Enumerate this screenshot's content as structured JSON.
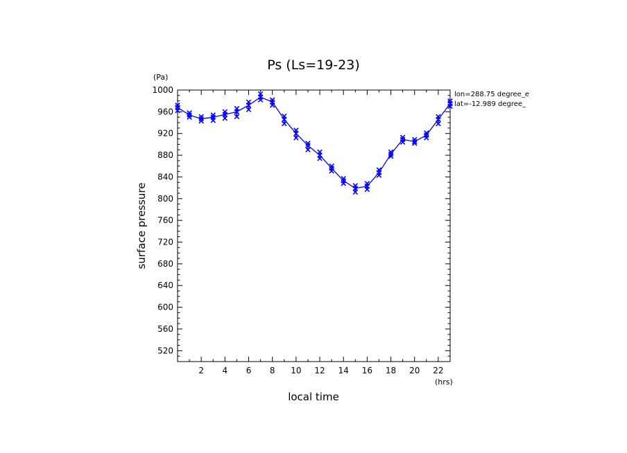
{
  "chart_data": {
    "type": "line",
    "title": "Ps (Ls=19-23)",
    "xlabel": "local time",
    "ylabel": "surface pressure",
    "x_unit": "(hrs)",
    "y_unit": "(Pa)",
    "xlim": [
      0,
      23
    ],
    "ylim": [
      500,
      1000
    ],
    "x_ticks": [
      2,
      4,
      6,
      8,
      10,
      12,
      14,
      16,
      18,
      20,
      22
    ],
    "y_ticks": [
      520,
      560,
      600,
      640,
      680,
      720,
      760,
      800,
      840,
      880,
      920,
      960,
      1000
    ],
    "grid": false,
    "line_color": "#0000ff",
    "marker": "x",
    "annotations": [
      "lon=288.75 degree_e",
      "lat=-12.989 degree_"
    ],
    "x": [
      0,
      1,
      2,
      3,
      4,
      5,
      6,
      7,
      8,
      9,
      10,
      11,
      12,
      13,
      14,
      15,
      16,
      17,
      18,
      19,
      20,
      21,
      22,
      23
    ],
    "series": [
      {
        "values": [
          968,
          954,
          947,
          950,
          955,
          960,
          972,
          987,
          978,
          946,
          920,
          898,
          880,
          856,
          833,
          819,
          823,
          848,
          882,
          909,
          905,
          917,
          946,
          975
        ],
        "spread": [
          [
            962,
            972
          ],
          [
            950,
            958
          ],
          [
            943,
            951
          ],
          [
            944,
            954
          ],
          [
            948,
            960
          ],
          [
            951,
            966
          ],
          [
            964,
            978
          ],
          [
            982,
            993
          ],
          [
            972,
            982
          ],
          [
            938,
            952
          ],
          [
            912,
            926
          ],
          [
            890,
            902
          ],
          [
            874,
            886
          ],
          [
            851,
            860
          ],
          [
            828,
            837
          ],
          [
            812,
            824
          ],
          [
            817,
            828
          ],
          [
            843,
            853
          ],
          [
            878,
            886
          ],
          [
            904,
            913
          ],
          [
            902,
            909
          ],
          [
            912,
            921
          ],
          [
            938,
            951
          ],
          [
            970,
            980
          ]
        ]
      }
    ]
  }
}
